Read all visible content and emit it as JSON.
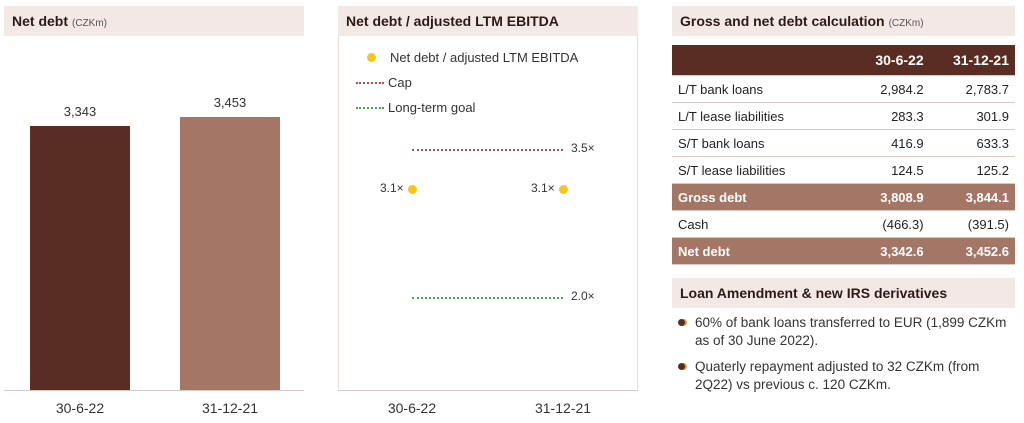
{
  "net_debt_panel": {
    "title": "Net debt",
    "unit": "(CZKm)"
  },
  "ratio_panel": {
    "title": "Net debt / adjusted LTM EBITDA",
    "legend": {
      "series": "Net debt / adjusted LTM EBITDA",
      "cap": "Cap",
      "goal": "Long-term goal"
    },
    "cap_label": "3.5×",
    "goal_label": "2.0×",
    "point_labels": [
      "3.1×",
      "3.1×"
    ]
  },
  "table_panel": {
    "title": "Gross and net debt calculation",
    "unit": "(CZKm)",
    "headers": [
      "",
      "30-6-22",
      "31-12-21"
    ],
    "rows": [
      {
        "label": "L/T bank loans",
        "v1": "2,984.2",
        "v2": "2,783.7",
        "total": false
      },
      {
        "label": "L/T lease liabilities",
        "v1": "283.3",
        "v2": "301.9",
        "total": false
      },
      {
        "label": "S/T bank loans",
        "v1": "416.9",
        "v2": "633.3",
        "total": false
      },
      {
        "label": "S/T lease liabilities",
        "v1": "124.5",
        "v2": "125.2",
        "total": false
      },
      {
        "label": "Gross debt",
        "v1": "3,808.9",
        "v2": "3,844.1",
        "total": true
      },
      {
        "label": "Cash",
        "v1": "(466.3)",
        "v2": "(391.5)",
        "total": false
      },
      {
        "label": "Net debt",
        "v1": "3,342.6",
        "v2": "3,452.6",
        "total": true
      }
    ]
  },
  "loan_panel": {
    "title": "Loan Amendment & new IRS derivatives",
    "bullets": [
      "60% of bank loans transferred to EUR (1,899 CZKm as of 30 June 2022).",
      "Quaterly repayment adjusted to 32 CZKm (from 2Q22) vs previous c. 120 CZKm."
    ]
  },
  "colors": {
    "bar1": "#5a2d24",
    "bar2": "#a47666",
    "point": "#f5c518",
    "cap": "#b5485a",
    "goal": "#4aa84a"
  },
  "chart_data": [
    {
      "type": "bar",
      "title": "Net debt",
      "categories": [
        "30-6-22",
        "31-12-21"
      ],
      "values": [
        3343,
        3453
      ],
      "data_labels": [
        "3,343",
        "3,453"
      ],
      "ylim": [
        0,
        3800
      ]
    },
    {
      "type": "scatter",
      "title": "Net debt / adjusted LTM EBITDA",
      "categories": [
        "30-6-22",
        "31-12-21"
      ],
      "series": [
        {
          "name": "Net debt / adjusted LTM EBITDA",
          "values": [
            3.1,
            3.1
          ]
        },
        {
          "name": "Cap",
          "values": [
            3.5,
            3.5
          ]
        },
        {
          "name": "Long-term goal",
          "values": [
            2.0,
            2.0
          ]
        }
      ],
      "ylim": [
        1.0,
        4.0
      ]
    }
  ]
}
